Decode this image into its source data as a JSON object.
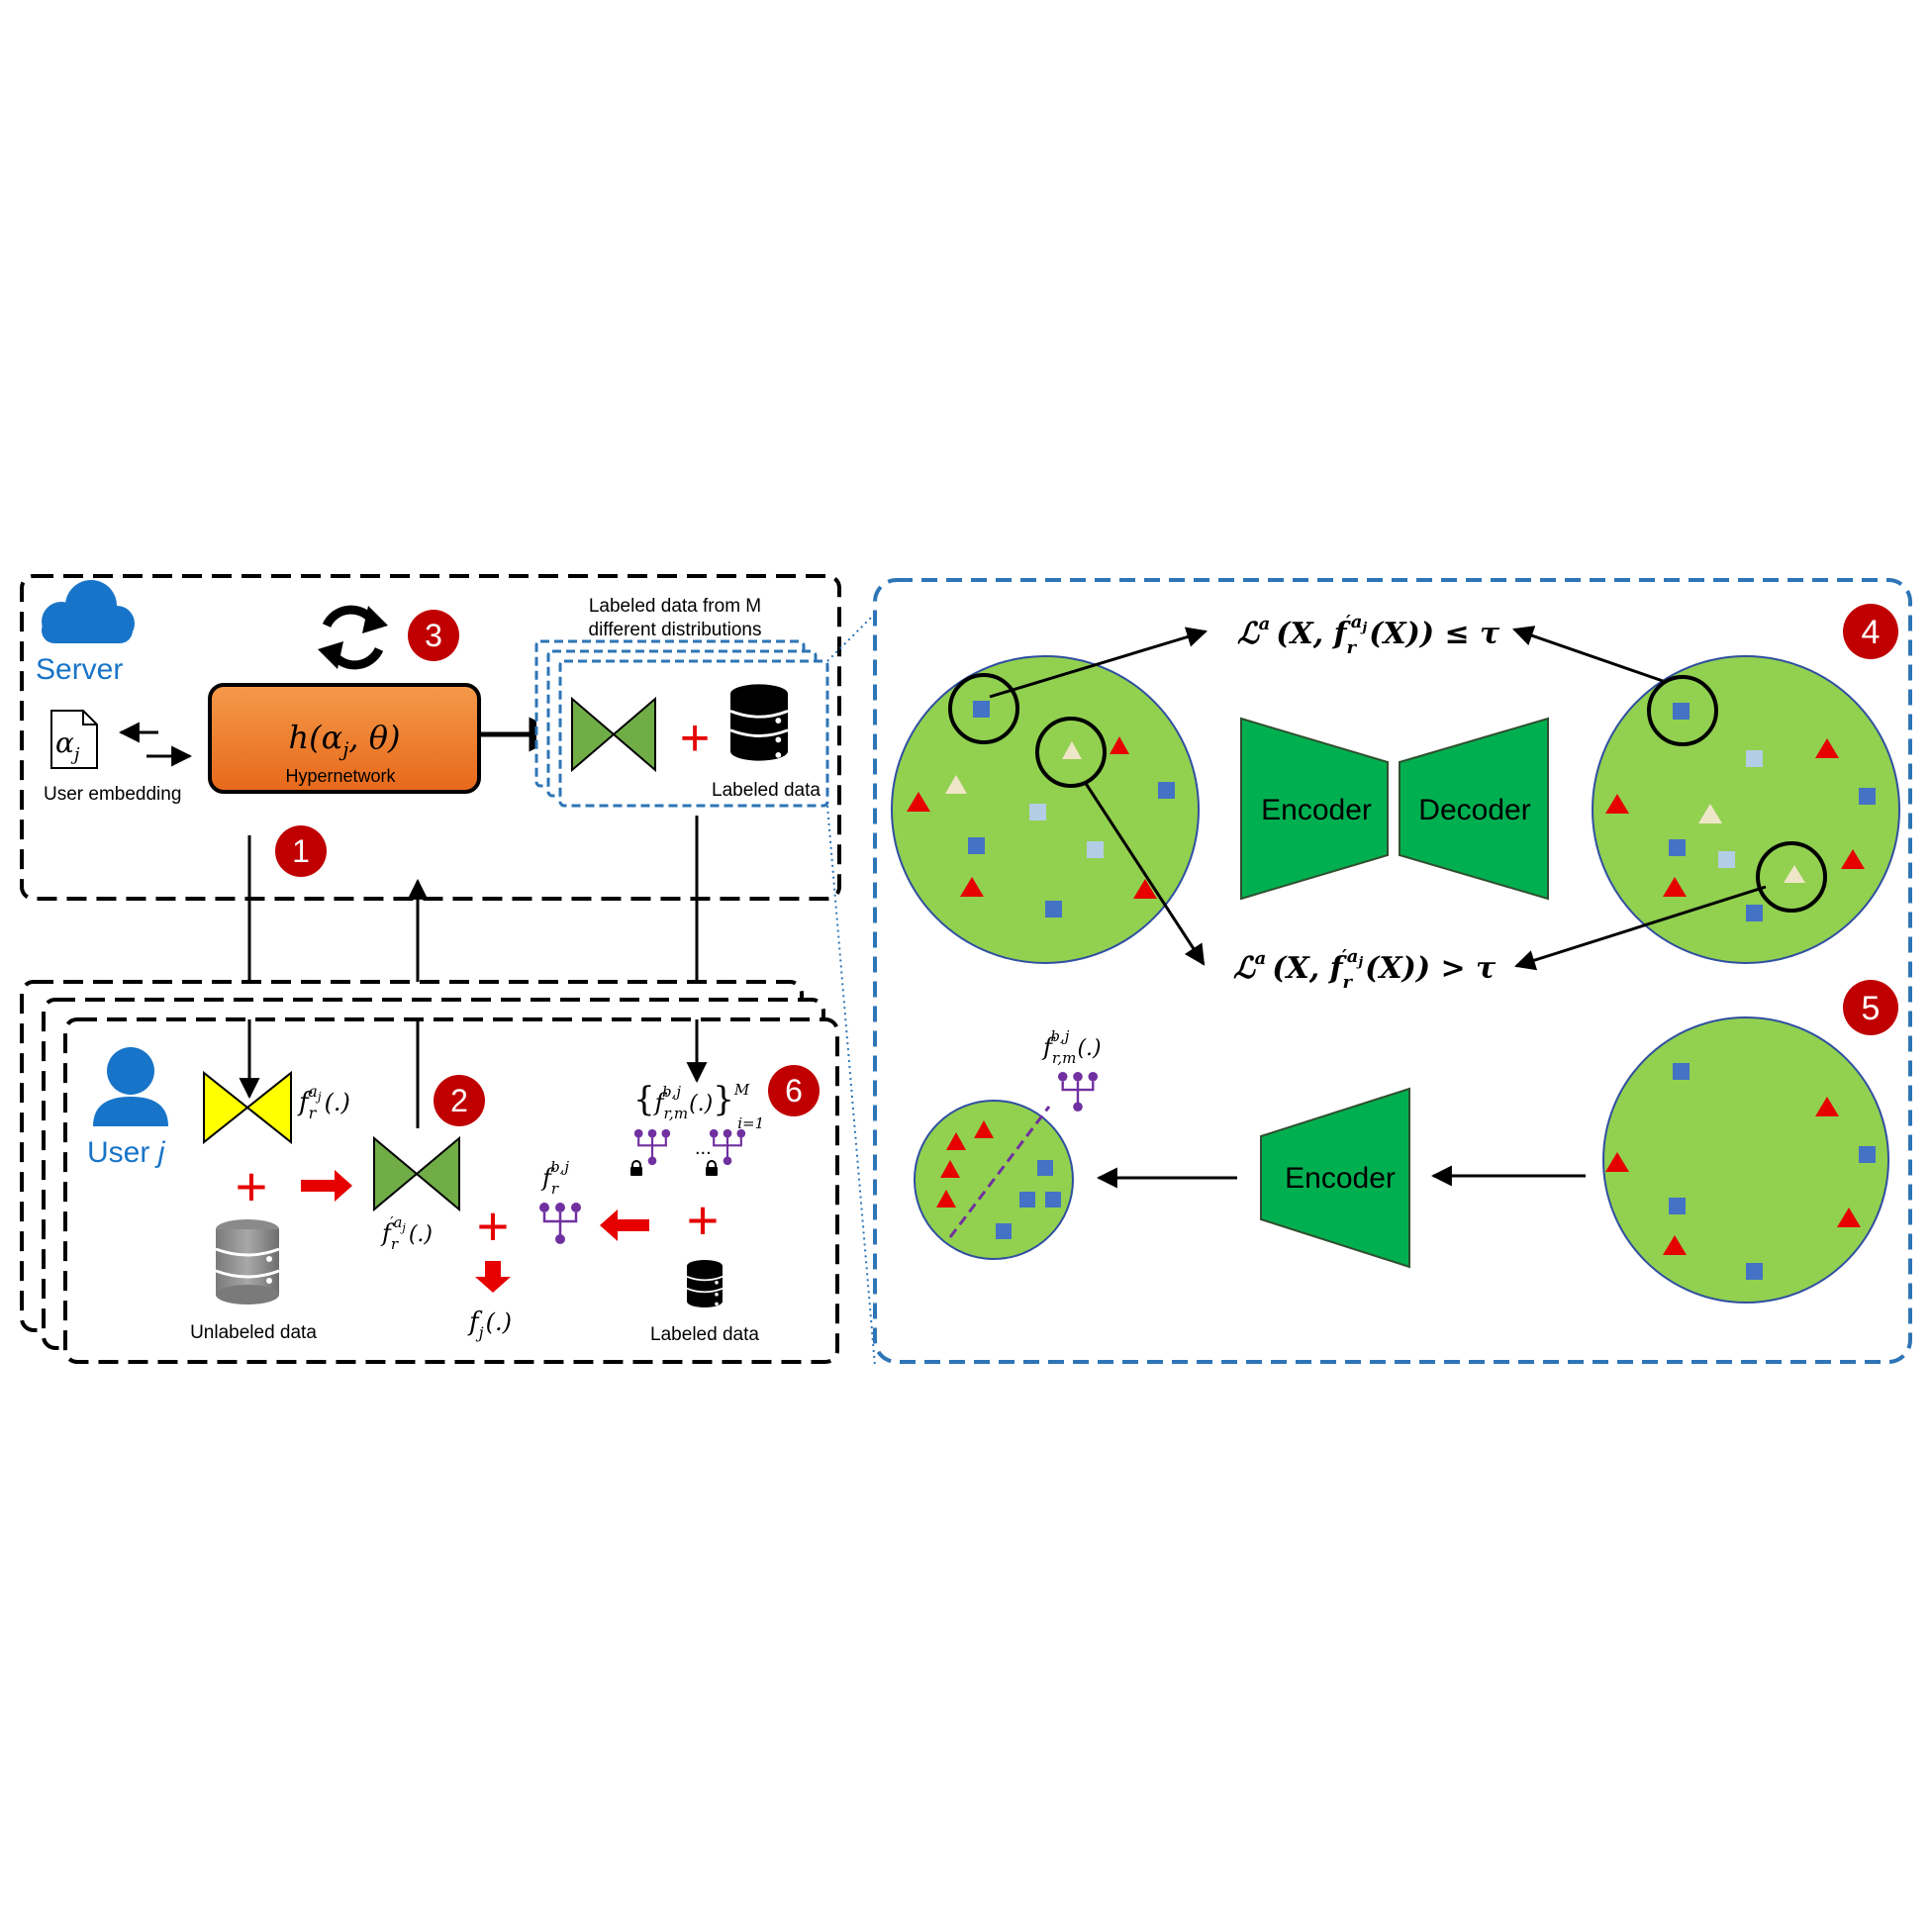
{
  "server": {
    "label": "Server"
  },
  "user": {
    "label_prefix": "User ",
    "label_var": "j"
  },
  "embedding": {
    "symbol": "α",
    "sub": "j",
    "label": "User embedding"
  },
  "hypernetwork": {
    "formula": "h(α",
    "formula_sub": "j",
    "formula_end": ", θ)",
    "label": "Hypernetwork"
  },
  "server_data": {
    "heading_line1": "Labeled data from M",
    "heading_line2": "different distributions",
    "db_label": "Labeled data"
  },
  "steps": [
    "1",
    "2",
    "3",
    "4",
    "5",
    "6"
  ],
  "client": {
    "unlabeled_label": "Unlabeled data",
    "labeled_label": "Labeled data",
    "f_r_aj": {
      "base": "f",
      "sub": "r",
      "sup": "a",
      "supsub": "j",
      "arg": "(.)"
    },
    "f_r_prime": {
      "base": "f",
      "sub": "r",
      "sup": "′a",
      "supsub": "j",
      "arg": "(.)"
    },
    "f_r_b": {
      "base": "f",
      "sub": "r",
      "sup": "b,j"
    },
    "f_j": {
      "base": "f",
      "sub": "j",
      "arg": "(.)"
    },
    "f_set": {
      "base": "f",
      "sub": "r,m",
      "sup": "b,j",
      "arg": "(.)",
      "upper": "M",
      "lower": "i=1"
    },
    "ellipsis": "..."
  },
  "panel4": {
    "eq_le": {
      "L": "ℒ",
      "sup": "a",
      "body": "(X, f",
      "fsub": "r",
      "fsup": "′a",
      "fsupsub": "j",
      "tail": "(X)) ≤ τ"
    },
    "eq_gt": {
      "L": "ℒ",
      "sup": "a",
      "body": "(X, f",
      "fsub": "r",
      "fsup": "′a",
      "fsupsub": "j",
      "tail": "(X)) > τ"
    },
    "encoder_label": "Encoder",
    "decoder_label": "Decoder"
  },
  "panel5": {
    "encoder_label": "Encoder",
    "f_label": {
      "base": "f",
      "sub": "r,m",
      "sup": "b,j",
      "arg": "(.)"
    }
  },
  "colors": {
    "step_red": "#c00000",
    "circle_green": "#92d050",
    "ae_green": "#00b050",
    "ae_olive": "#70ad47",
    "hyper_orange": "#f07a28",
    "triangle_red": "#e60000",
    "square_blue": "#4472c4",
    "square_light": "#b4cde6",
    "triangle_cream": "#efe6c8",
    "yellow": "#ffff00",
    "purple": "#7030a0",
    "server_blue": "#1874c8",
    "panel_blue": "#2e75b6"
  }
}
